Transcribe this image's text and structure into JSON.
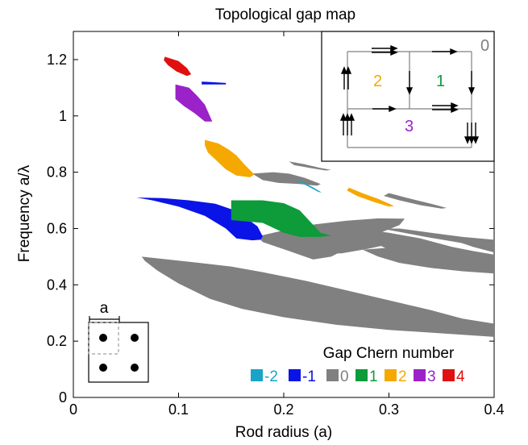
{
  "chart_data": {
    "type": "area",
    "title": "Topological gap map",
    "xlabel": "Rod radius (a)",
    "ylabel": "Frequency a/λ",
    "xlim": [
      0,
      0.4
    ],
    "ylim": [
      0,
      1.3
    ],
    "xticks": [
      {
        "value": 0,
        "label": "0"
      },
      {
        "value": 0.1,
        "label": "0.1"
      },
      {
        "value": 0.2,
        "label": "0.2"
      },
      {
        "value": 0.3,
        "label": "0.3"
      },
      {
        "value": 0.4,
        "label": "0.4"
      }
    ],
    "yticks": [
      {
        "value": 0,
        "label": "0"
      },
      {
        "value": 0.2,
        "label": "0.2"
      },
      {
        "value": 0.4,
        "label": "0.4"
      },
      {
        "value": 0.6,
        "label": "0.6"
      },
      {
        "value": 0.8,
        "label": "0.8"
      },
      {
        "value": 1.0,
        "label": "1"
      },
      {
        "value": 1.2,
        "label": "1.2"
      }
    ],
    "grid": false,
    "legend": {
      "title": "Gap Chern number",
      "placement": "bottom-right",
      "entries": [
        {
          "label": "-2",
          "color": "#1aa3c9"
        },
        {
          "label": "-1",
          "color": "#0a14e6"
        },
        {
          "label": "0",
          "color": "#808080"
        },
        {
          "label": "1",
          "color": "#0e9b3a"
        },
        {
          "label": "2",
          "color": "#f5a800"
        },
        {
          "label": "3",
          "color": "#9b22c8"
        },
        {
          "label": "4",
          "color": "#e01010"
        }
      ]
    },
    "gap_regions": [
      {
        "chern": "0",
        "color": "#808080",
        "points": [
          [
            0.065,
            0.5
          ],
          [
            0.09,
            0.49
          ],
          [
            0.12,
            0.478
          ],
          [
            0.15,
            0.465
          ],
          [
            0.18,
            0.445
          ],
          [
            0.22,
            0.415
          ],
          [
            0.26,
            0.38
          ],
          [
            0.3,
            0.345
          ],
          [
            0.34,
            0.31
          ],
          [
            0.37,
            0.28
          ],
          [
            0.4,
            0.262
          ],
          [
            0.4,
            0.215
          ],
          [
            0.36,
            0.225
          ],
          [
            0.3,
            0.24
          ],
          [
            0.25,
            0.258
          ],
          [
            0.2,
            0.285
          ],
          [
            0.16,
            0.315
          ],
          [
            0.13,
            0.35
          ],
          [
            0.1,
            0.405
          ],
          [
            0.08,
            0.45
          ],
          [
            0.068,
            0.485
          ]
        ]
      },
      {
        "chern": "0",
        "color": "#808080",
        "points": [
          [
            0.175,
            0.572
          ],
          [
            0.205,
            0.598
          ],
          [
            0.23,
            0.615
          ],
          [
            0.26,
            0.628
          ],
          [
            0.29,
            0.636
          ],
          [
            0.315,
            0.635
          ],
          [
            0.31,
            0.612
          ],
          [
            0.285,
            0.575
          ],
          [
            0.262,
            0.532
          ],
          [
            0.245,
            0.5
          ],
          [
            0.228,
            0.49
          ],
          [
            0.205,
            0.52
          ],
          [
            0.18,
            0.552
          ]
        ]
      },
      {
        "chern": "0",
        "color": "#808080",
        "points": [
          [
            0.22,
            0.565
          ],
          [
            0.255,
            0.575
          ],
          [
            0.29,
            0.58
          ],
          [
            0.32,
            0.57
          ],
          [
            0.305,
            0.548
          ],
          [
            0.28,
            0.528
          ],
          [
            0.255,
            0.512
          ],
          [
            0.235,
            0.51
          ],
          [
            0.225,
            0.53
          ]
        ]
      },
      {
        "chern": "0",
        "color": "#808080",
        "points": [
          [
            0.27,
            0.6
          ],
          [
            0.3,
            0.585
          ],
          [
            0.33,
            0.565
          ],
          [
            0.36,
            0.535
          ],
          [
            0.38,
            0.52
          ],
          [
            0.4,
            0.507
          ],
          [
            0.4,
            0.458
          ],
          [
            0.37,
            0.47
          ],
          [
            0.345,
            0.49
          ],
          [
            0.32,
            0.505
          ],
          [
            0.3,
            0.525
          ],
          [
            0.28,
            0.56
          ]
        ]
      },
      {
        "chern": "0",
        "color": "#808080",
        "points": [
          [
            0.275,
            0.525
          ],
          [
            0.31,
            0.535
          ],
          [
            0.345,
            0.528
          ],
          [
            0.375,
            0.51
          ],
          [
            0.4,
            0.498
          ],
          [
            0.4,
            0.44
          ],
          [
            0.37,
            0.448
          ],
          [
            0.34,
            0.46
          ],
          [
            0.31,
            0.478
          ],
          [
            0.29,
            0.5
          ]
        ]
      },
      {
        "chern": "0",
        "color": "#808080",
        "points": [
          [
            0.36,
            0.57
          ],
          [
            0.385,
            0.55
          ],
          [
            0.4,
            0.538
          ],
          [
            0.4,
            0.515
          ],
          [
            0.38,
            0.535
          ],
          [
            0.36,
            0.56
          ]
        ]
      },
      {
        "chern": "0",
        "color": "#808080",
        "points": [
          [
            0.275,
            0.6
          ],
          [
            0.3,
            0.595
          ],
          [
            0.335,
            0.57
          ],
          [
            0.37,
            0.548
          ],
          [
            0.4,
            0.532
          ],
          [
            0.4,
            0.56
          ],
          [
            0.37,
            0.57
          ],
          [
            0.34,
            0.585
          ],
          [
            0.31,
            0.6
          ]
        ]
      },
      {
        "chern": "0",
        "color": "#808080",
        "points": [
          [
            0.3,
            0.726
          ],
          [
            0.318,
            0.708
          ],
          [
            0.34,
            0.688
          ],
          [
            0.355,
            0.673
          ],
          [
            0.35,
            0.671
          ],
          [
            0.33,
            0.683
          ],
          [
            0.31,
            0.7
          ],
          [
            0.295,
            0.716
          ]
        ]
      },
      {
        "chern": "0",
        "color": "#808080",
        "points": [
          [
            0.17,
            0.795
          ],
          [
            0.19,
            0.8
          ],
          [
            0.205,
            0.795
          ],
          [
            0.22,
            0.78
          ],
          [
            0.235,
            0.758
          ],
          [
            0.232,
            0.752
          ],
          [
            0.215,
            0.758
          ],
          [
            0.195,
            0.762
          ],
          [
            0.18,
            0.772
          ]
        ]
      },
      {
        "chern": "0",
        "color": "#808080",
        "points": [
          [
            0.205,
            0.838
          ],
          [
            0.22,
            0.828
          ],
          [
            0.235,
            0.815
          ],
          [
            0.245,
            0.808
          ],
          [
            0.24,
            0.806
          ],
          [
            0.225,
            0.815
          ],
          [
            0.21,
            0.825
          ]
        ]
      },
      {
        "chern": "-2",
        "color": "#1aa3c9",
        "points": [
          [
            0.212,
            0.77
          ],
          [
            0.222,
            0.752
          ],
          [
            0.233,
            0.73
          ],
          [
            0.236,
            0.728
          ],
          [
            0.227,
            0.748
          ],
          [
            0.216,
            0.768
          ]
        ]
      },
      {
        "chern": "-1",
        "color": "#0a14e6",
        "points": [
          [
            0.06,
            0.71
          ],
          [
            0.085,
            0.708
          ],
          [
            0.11,
            0.7
          ],
          [
            0.135,
            0.688
          ],
          [
            0.155,
            0.662
          ],
          [
            0.175,
            0.608
          ],
          [
            0.18,
            0.572
          ],
          [
            0.178,
            0.56
          ],
          [
            0.17,
            0.558
          ],
          [
            0.155,
            0.565
          ],
          [
            0.145,
            0.6
          ],
          [
            0.125,
            0.645
          ],
          [
            0.1,
            0.678
          ],
          [
            0.075,
            0.7
          ]
        ]
      },
      {
        "chern": "-1",
        "color": "#0a14e6",
        "points": [
          [
            0.122,
            1.122
          ],
          [
            0.145,
            1.117
          ],
          [
            0.145,
            1.112
          ],
          [
            0.122,
            1.112
          ]
        ]
      },
      {
        "chern": "1",
        "color": "#0e9b3a",
        "points": [
          [
            0.15,
            0.7
          ],
          [
            0.18,
            0.7
          ],
          [
            0.2,
            0.69
          ],
          [
            0.215,
            0.665
          ],
          [
            0.235,
            0.585
          ],
          [
            0.245,
            0.575
          ],
          [
            0.235,
            0.57
          ],
          [
            0.215,
            0.57
          ],
          [
            0.2,
            0.585
          ],
          [
            0.18,
            0.62
          ],
          [
            0.15,
            0.63
          ]
        ]
      },
      {
        "chern": "2",
        "color": "#f5a800",
        "points": [
          [
            0.125,
            0.915
          ],
          [
            0.138,
            0.902
          ],
          [
            0.148,
            0.88
          ],
          [
            0.155,
            0.86
          ],
          [
            0.162,
            0.83
          ],
          [
            0.172,
            0.792
          ],
          [
            0.168,
            0.782
          ],
          [
            0.155,
            0.788
          ],
          [
            0.145,
            0.81
          ],
          [
            0.135,
            0.845
          ],
          [
            0.128,
            0.87
          ],
          [
            0.125,
            0.895
          ]
        ]
      },
      {
        "chern": "2",
        "color": "#f5a800",
        "points": [
          [
            0.262,
            0.745
          ],
          [
            0.275,
            0.725
          ],
          [
            0.29,
            0.705
          ],
          [
            0.305,
            0.68
          ],
          [
            0.3,
            0.678
          ],
          [
            0.285,
            0.695
          ],
          [
            0.27,
            0.715
          ],
          [
            0.26,
            0.735
          ]
        ]
      },
      {
        "chern": "3",
        "color": "#9b22c8",
        "points": [
          [
            0.097,
            1.112
          ],
          [
            0.11,
            1.1
          ],
          [
            0.118,
            1.07
          ],
          [
            0.125,
            1.04
          ],
          [
            0.132,
            0.98
          ],
          [
            0.125,
            0.98
          ],
          [
            0.115,
            1.01
          ],
          [
            0.105,
            1.035
          ],
          [
            0.097,
            1.06
          ]
        ]
      },
      {
        "chern": "4",
        "color": "#e01010",
        "points": [
          [
            0.087,
            1.21
          ],
          [
            0.1,
            1.195
          ],
          [
            0.108,
            1.17
          ],
          [
            0.112,
            1.148
          ],
          [
            0.108,
            1.142
          ],
          [
            0.098,
            1.158
          ],
          [
            0.09,
            1.18
          ],
          [
            0.086,
            1.198
          ]
        ]
      }
    ],
    "inset_edge_diagram": {
      "regions": [
        {
          "label": "0",
          "color": "#808080"
        },
        {
          "label": "2",
          "color": "#f5a800"
        },
        {
          "label": "1",
          "color": "#0e9b3a"
        },
        {
          "label": "3",
          "color": "#9b22c8"
        }
      ]
    },
    "lattice_inset": {
      "label": "a"
    }
  }
}
